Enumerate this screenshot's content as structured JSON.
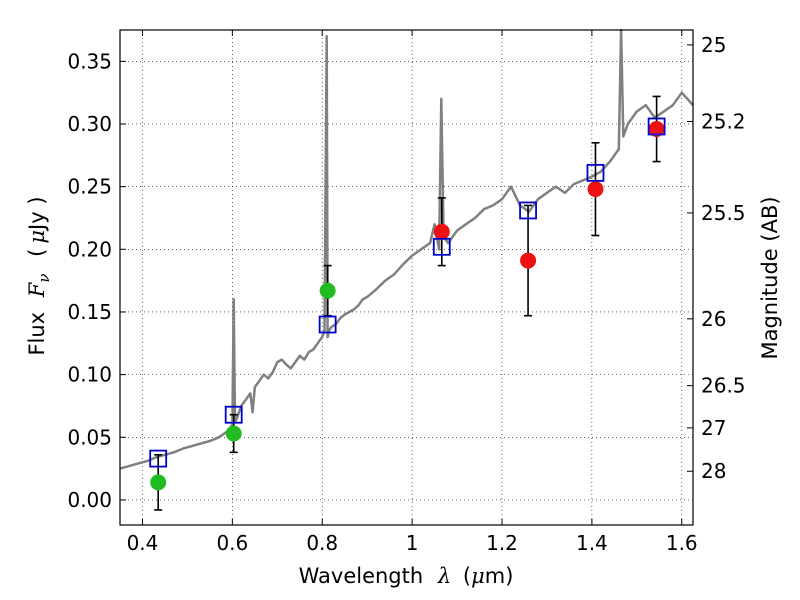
{
  "chart_data": {
    "type": "scatter",
    "xlabel": {
      "prefix": "Wavelength",
      "symbol": "λ",
      "unit_open": "(",
      "unit_mu": "μ",
      "unit_rest": "m)"
    },
    "ylabel": {
      "prefix": "Flux",
      "symbol": "F",
      "subscript": "ν",
      "unit_open": "(",
      "unit_mu": "μ",
      "unit_rest": "Jy )"
    },
    "y2label": "Magnitude (AB)",
    "xlim": [
      0.35,
      1.625
    ],
    "ylim": [
      -0.02,
      0.375
    ],
    "grid": true,
    "x_ticks": [
      0.4,
      0.6,
      0.8,
      1.0,
      1.2,
      1.4,
      1.6
    ],
    "x_tick_labels": [
      "0.4",
      "0.6",
      "0.8",
      "1",
      "1.2",
      "1.4",
      "1.6"
    ],
    "y_ticks": [
      0.0,
      0.05,
      0.1,
      0.15,
      0.2,
      0.25,
      0.3,
      0.35
    ],
    "y_tick_labels": [
      "0.00",
      "0.05",
      "0.10",
      "0.15",
      "0.20",
      "0.25",
      "0.30",
      "0.35"
    ],
    "y2_ticks": [
      {
        "label": "25",
        "flux": 0.3631
      },
      {
        "label": "25.2",
        "flux": 0.302
      },
      {
        "label": "25.5",
        "flux": 0.229
      },
      {
        "label": "26",
        "flux": 0.1445
      },
      {
        "label": "26.5",
        "flux": 0.0912
      },
      {
        "label": "27",
        "flux": 0.0575
      },
      {
        "label": "28",
        "flux": 0.0229
      }
    ],
    "colors": {
      "spectrum": "#808080",
      "green_points": "#22bb22",
      "red_points": "#ee1111",
      "model_squares": "#0000cc",
      "error_bars": "#000000"
    },
    "series": [
      {
        "type": "line",
        "x": [
          0.35,
          0.37,
          0.39,
          0.41,
          0.43,
          0.45,
          0.47,
          0.49,
          0.51,
          0.53,
          0.55,
          0.57,
          0.59,
          0.6,
          0.603,
          0.606,
          0.61,
          0.62,
          0.63,
          0.64,
          0.645,
          0.65,
          0.66,
          0.67,
          0.68,
          0.69,
          0.7,
          0.71,
          0.72,
          0.73,
          0.74,
          0.75,
          0.76,
          0.77,
          0.78,
          0.79,
          0.8,
          0.805,
          0.81,
          0.812,
          0.815,
          0.82,
          0.83,
          0.84,
          0.85,
          0.86,
          0.87,
          0.88,
          0.89,
          0.9,
          0.92,
          0.94,
          0.96,
          0.98,
          1.0,
          1.02,
          1.04,
          1.05,
          1.06,
          1.065,
          1.07,
          1.08,
          1.09,
          1.1,
          1.12,
          1.14,
          1.16,
          1.18,
          1.2,
          1.22,
          1.24,
          1.26,
          1.28,
          1.3,
          1.32,
          1.34,
          1.36,
          1.38,
          1.4,
          1.42,
          1.44,
          1.45,
          1.46,
          1.465,
          1.47,
          1.48,
          1.5,
          1.52,
          1.54,
          1.56,
          1.58,
          1.6,
          1.625
        ],
        "y": [
          0.025,
          0.027,
          0.029,
          0.031,
          0.034,
          0.036,
          0.038,
          0.041,
          0.043,
          0.045,
          0.047,
          0.05,
          0.055,
          0.06,
          0.16,
          0.062,
          0.065,
          0.075,
          0.08,
          0.085,
          0.07,
          0.09,
          0.095,
          0.1,
          0.097,
          0.102,
          0.11,
          0.112,
          0.108,
          0.105,
          0.11,
          0.115,
          0.112,
          0.118,
          0.12,
          0.125,
          0.13,
          0.135,
          0.37,
          0.13,
          0.135,
          0.138,
          0.14,
          0.145,
          0.148,
          0.15,
          0.152,
          0.155,
          0.16,
          0.162,
          0.168,
          0.175,
          0.18,
          0.188,
          0.195,
          0.2,
          0.205,
          0.22,
          0.2,
          0.32,
          0.21,
          0.205,
          0.21,
          0.215,
          0.22,
          0.225,
          0.232,
          0.235,
          0.24,
          0.25,
          0.235,
          0.23,
          0.24,
          0.245,
          0.25,
          0.245,
          0.252,
          0.255,
          0.258,
          0.262,
          0.27,
          0.275,
          0.28,
          0.375,
          0.29,
          0.3,
          0.31,
          0.315,
          0.305,
          0.31,
          0.315,
          0.325,
          0.315
        ]
      },
      {
        "type": "scatter",
        "color": "green",
        "x": [
          0.435,
          0.603,
          0.812
        ],
        "y": [
          0.014,
          0.053,
          0.167
        ],
        "err": [
          0.022,
          0.015,
          0.02
        ]
      },
      {
        "type": "scatter",
        "color": "red",
        "x": [
          1.066,
          1.258,
          1.408,
          1.544
        ],
        "y": [
          0.214,
          0.191,
          0.248,
          0.296
        ],
        "err": [
          0.027,
          0.044,
          0.037,
          0.026
        ]
      },
      {
        "type": "scatter",
        "color": "blue_squares",
        "x": [
          0.435,
          0.603,
          0.812,
          1.066,
          1.258,
          1.408,
          1.544
        ],
        "y": [
          0.033,
          0.068,
          0.14,
          0.202,
          0.231,
          0.261,
          0.298
        ]
      }
    ]
  }
}
